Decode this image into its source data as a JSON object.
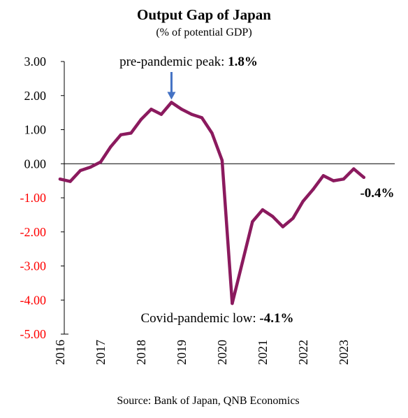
{
  "chart_data": {
    "type": "line",
    "title": "Output Gap of Japan",
    "subtitle": "(% of potential GDP)",
    "source": "Source: Bank of Japan, QNB Economics",
    "ylim": [
      -5,
      3
    ],
    "y_ticks": [
      3,
      2,
      1,
      0,
      -1,
      -2,
      -3,
      -4,
      -5
    ],
    "y_tick_labels": [
      "3.00",
      "2.00",
      "1.00",
      "0.00",
      "-1.00",
      "-2.00",
      "-3.00",
      "-4.00",
      "-5.00"
    ],
    "x_tick_labels": [
      "2016",
      "2017",
      "2018",
      "2019",
      "2020",
      "2021",
      "2022",
      "2023"
    ],
    "xlim": [
      2016,
      2023.9
    ],
    "grid": false,
    "series": [
      {
        "color": "#8B1A5E",
        "x": [
          2016.0,
          2016.25,
          2016.5,
          2016.75,
          2017.0,
          2017.25,
          2017.5,
          2017.75,
          2018.0,
          2018.25,
          2018.5,
          2018.75,
          2019.0,
          2019.25,
          2019.5,
          2019.75,
          2020.0,
          2020.25,
          2020.5,
          2020.75,
          2021.0,
          2021.25,
          2021.5,
          2021.75,
          2022.0,
          2022.25,
          2022.5,
          2022.75,
          2023.0,
          2023.25,
          2023.5
        ],
        "y": [
          -0.45,
          -0.52,
          -0.2,
          -0.1,
          0.05,
          0.5,
          0.85,
          0.9,
          1.3,
          1.6,
          1.45,
          1.8,
          1.6,
          1.45,
          1.35,
          0.9,
          0.1,
          -4.1,
          -2.9,
          -1.7,
          -1.35,
          -1.55,
          -1.85,
          -1.6,
          -1.1,
          -0.75,
          -0.35,
          -0.5,
          -0.45,
          -0.15,
          -0.4
        ]
      }
    ],
    "annotations": {
      "peak": {
        "label": "pre-pandemic peak: ",
        "value": "1.8%",
        "arrow_color": "#4472C4"
      },
      "low": {
        "label": "Covid-pandemic low: ",
        "value": "-4.1%"
      },
      "last": {
        "value": "-0.4%"
      }
    },
    "colors": {
      "series": "#8B1A5E",
      "negative_tick": "#FF0000",
      "positive_tick": "#000000",
      "arrow": "#4472C4"
    }
  }
}
